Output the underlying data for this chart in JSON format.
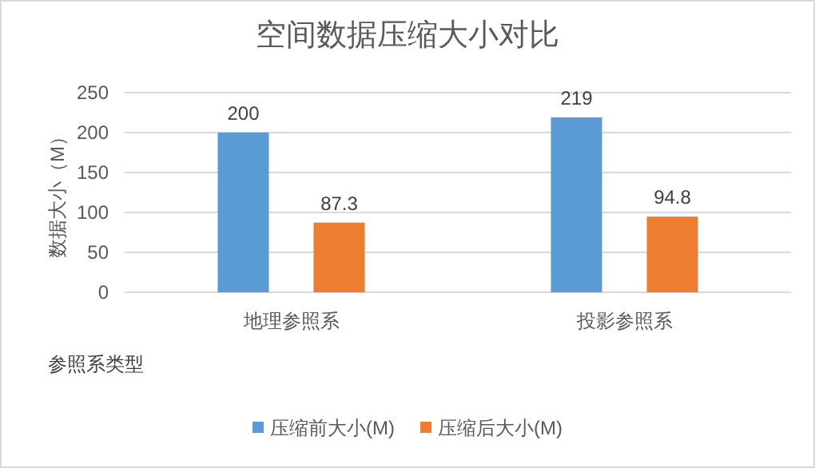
{
  "chart_data": {
    "type": "bar",
    "title": "空间数据压缩大小对比",
    "xlabel": "参照系类型",
    "ylabel": "数据大小（M）",
    "categories": [
      "地理参照系",
      "投影参照系"
    ],
    "series": [
      {
        "name": "压缩前大小(M)",
        "color": "#5b9bd5",
        "values": [
          200,
          219
        ]
      },
      {
        "name": "压缩后大小(M)",
        "color": "#ed7d31",
        "values": [
          87.3,
          94.8
        ]
      }
    ],
    "ylim": [
      0,
      250
    ],
    "yticks": [
      0,
      50,
      100,
      150,
      200,
      250
    ],
    "grid": "y",
    "legend": "bottom",
    "data_labels": true
  }
}
